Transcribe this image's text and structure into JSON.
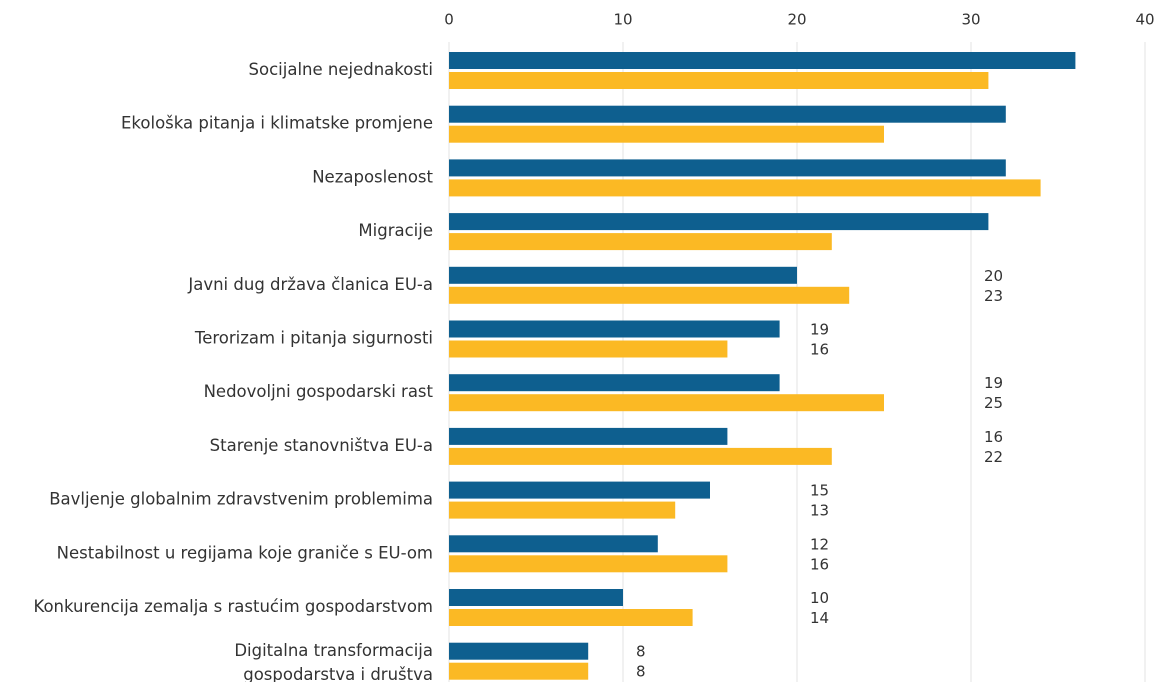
{
  "chart_data": {
    "type": "bar",
    "orientation": "horizontal",
    "categories": [
      "Socijalne nejednakosti",
      "Ekološka pitanja i klimatske promjene",
      "Nezaposlenost",
      "Migracije",
      "Javni dug država članica EU-a",
      "Terorizam i pitanja sigurnosti",
      "Nedovoljni gospodarski rast",
      "Starenje stanovništva EU-a",
      "Bavljenje globalnim zdravstvenim problemima",
      "Nestabilnost u regijama koje graniče s EU-om",
      "Konkurencija zemalja s rastućim gospodarstvom",
      "Digitalna transformacija\ngospodarstva i društva"
    ],
    "series": [
      {
        "color": "#0e5f8f",
        "values": [
          36,
          32,
          32,
          31,
          20,
          19,
          19,
          16,
          15,
          12,
          10,
          8
        ],
        "value_labels": [
          null,
          null,
          null,
          null,
          "20",
          "19",
          "19",
          "16",
          "15",
          "12",
          "10",
          "8"
        ]
      },
      {
        "color": "#fbb924",
        "values": [
          31,
          25,
          34,
          22,
          23,
          16,
          25,
          22,
          13,
          16,
          14,
          8
        ],
        "value_labels": [
          null,
          null,
          null,
          null,
          "23",
          "16",
          "25",
          "22",
          "13",
          "16",
          "14",
          "8"
        ]
      }
    ],
    "xlim": [
      0,
      40
    ],
    "xticks": [
      0,
      10,
      20,
      30,
      40
    ],
    "grid": true
  }
}
